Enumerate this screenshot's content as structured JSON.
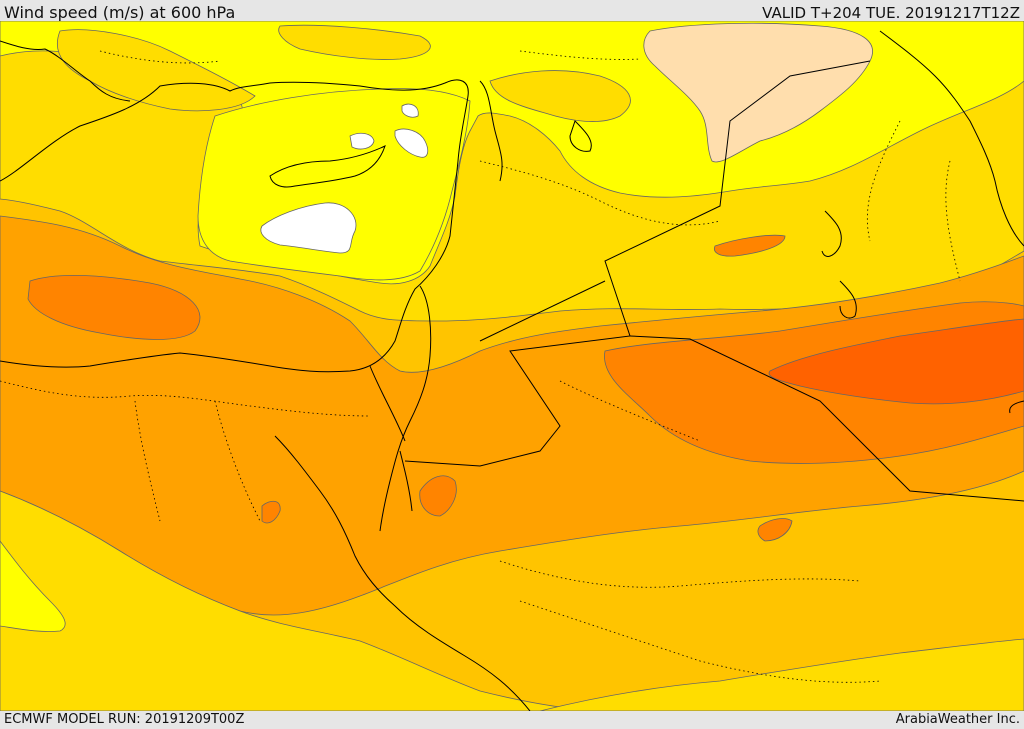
{
  "header": {
    "title": "Wind speed (m/s) at 600 hPa",
    "valid_time": "VALID T+204 TUE. 20191217T12Z"
  },
  "footer": {
    "model_run": "ECMWF MODEL RUN: 20191209T00Z",
    "credit": "ArabiaWeather Inc."
  },
  "colors": {
    "white": "#ffffff",
    "yellow": "#ffff00",
    "gold": "#ffdd00",
    "light_orange": "#ffc400",
    "orange": "#ffa200",
    "dark_orange": "#ff8400",
    "red_orange": "#ff6200",
    "peach": "#ffdead",
    "coast": "#000000",
    "contour": "#555555"
  }
}
